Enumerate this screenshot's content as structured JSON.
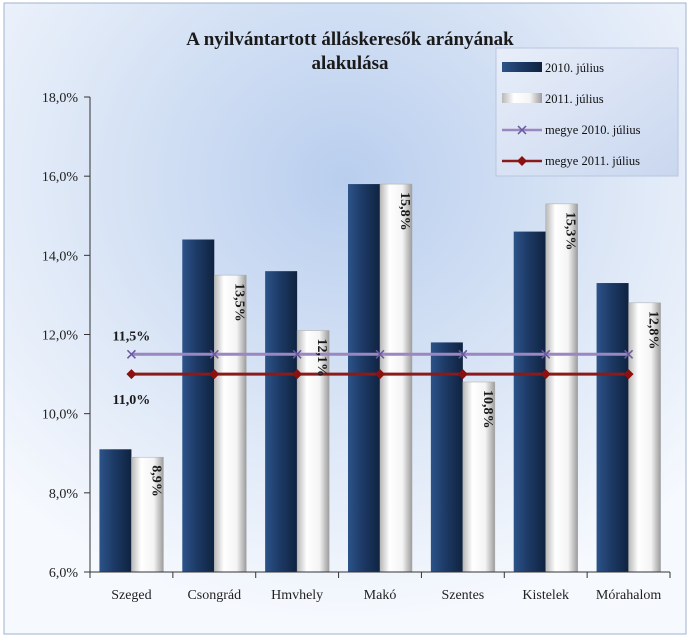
{
  "chart_data": {
    "type": "bar",
    "title": "A nyilvántartott álláskeresők arányának alakulása",
    "title_lines": [
      "A nyilvántartott álláskeresők arányának",
      "alakulása"
    ],
    "categories": [
      "Szeged",
      "Csongrád",
      "Hmvhely",
      "Makó",
      "Szentes",
      "Kistelek",
      "Mórahalom"
    ],
    "series": [
      {
        "name": "2010. július",
        "type": "bar",
        "values": [
          9.1,
          14.4,
          13.6,
          15.8,
          11.8,
          14.6,
          13.3
        ],
        "color": "#1f3f6e"
      },
      {
        "name": "2011. július",
        "type": "bar",
        "values": [
          8.9,
          13.5,
          12.1,
          15.8,
          10.8,
          15.3,
          12.8
        ],
        "data_labels": [
          "8,9%",
          "13,5%",
          "12,1%",
          "15,8%",
          "10,8%",
          "15,3%",
          "12,8%"
        ],
        "color": "#ffffff"
      },
      {
        "name": "megye 2010. július",
        "type": "line",
        "values": [
          11.5,
          11.5,
          11.5,
          11.5,
          11.5,
          11.5,
          11.5
        ],
        "data_label": "11,5%",
        "color": "#9a86c0"
      },
      {
        "name": "megye 2011. július",
        "type": "line",
        "values": [
          11.0,
          11.0,
          11.0,
          11.0,
          11.0,
          11.0,
          11.0
        ],
        "data_label": "11,0%",
        "color": "#8b1a1a"
      }
    ],
    "y_ticks": [
      "6,0%",
      "8,0%",
      "10,0%",
      "12,0%",
      "14,0%",
      "16,0%",
      "18,0%"
    ],
    "ylim": [
      6,
      18
    ],
    "ytick_step": 2,
    "grid": false,
    "legend_position": "top-right"
  }
}
